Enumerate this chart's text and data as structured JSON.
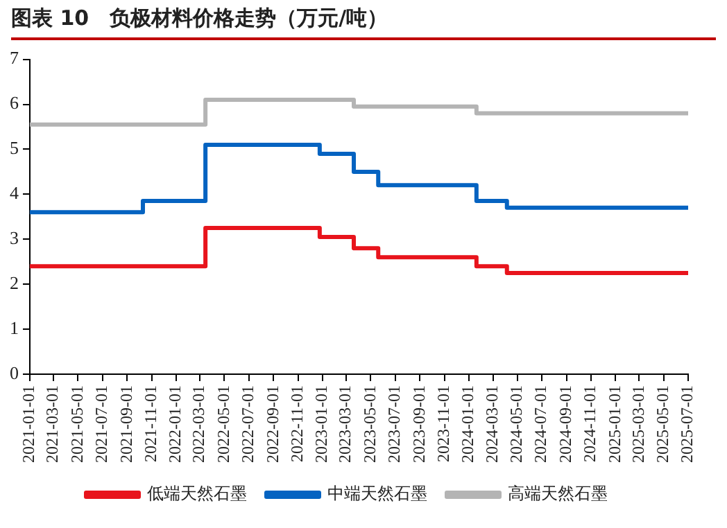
{
  "chart_data": {
    "type": "step",
    "title": "图表 10　负极材料价格走势（万元/吨）",
    "series": [
      {
        "name": "低端天然石墨",
        "color": "#e8141c",
        "x": [
          "2021-01-01",
          "2022-03-15",
          "2022-12-25",
          "2023-03-20",
          "2023-05-20",
          "2024-01-20",
          "2024-04-05",
          "2025-07-01"
        ],
        "values": [
          2.4,
          3.25,
          3.05,
          2.8,
          2.6,
          2.4,
          2.25,
          2.25
        ]
      },
      {
        "name": "中端天然石墨",
        "color": "#0563c1",
        "x": [
          "2021-01-01",
          "2021-10-10",
          "2022-03-15",
          "2022-12-25",
          "2023-03-20",
          "2023-05-20",
          "2024-01-20",
          "2024-04-05",
          "2025-07-01"
        ],
        "values": [
          3.6,
          3.85,
          5.1,
          4.9,
          4.5,
          4.2,
          3.85,
          3.7,
          3.7
        ]
      },
      {
        "name": "高端天然石墨",
        "color": "#b4b4b4",
        "x": [
          "2021-01-01",
          "2022-03-15",
          "2023-03-20",
          "2024-01-20",
          "2025-07-01"
        ],
        "values": [
          5.55,
          6.1,
          5.95,
          5.8,
          5.8
        ]
      }
    ],
    "xlim": [
      "2021-01-01",
      "2025-07-01"
    ],
    "xticks": [
      "2021-01-01",
      "2021-03-01",
      "2021-05-01",
      "2021-07-01",
      "2021-09-01",
      "2021-11-01",
      "2022-01-01",
      "2022-03-01",
      "2022-05-01",
      "2022-07-01",
      "2022-09-01",
      "2022-11-01",
      "2023-01-01",
      "2023-03-01",
      "2023-05-01",
      "2023-07-01",
      "2023-09-01",
      "2023-11-01",
      "2024-01-01",
      "2024-03-01",
      "2024-05-01",
      "2024-07-01",
      "2024-09-01",
      "2024-11-01",
      "2025-01-01",
      "2025-03-01",
      "2025-05-01",
      "2025-07-01"
    ],
    "ylim": [
      0,
      7
    ],
    "yticks": [
      0,
      1,
      2,
      3,
      4,
      5,
      6,
      7
    ],
    "grid": false,
    "legend": "bottom",
    "marker": "none",
    "line_style": "solid"
  }
}
